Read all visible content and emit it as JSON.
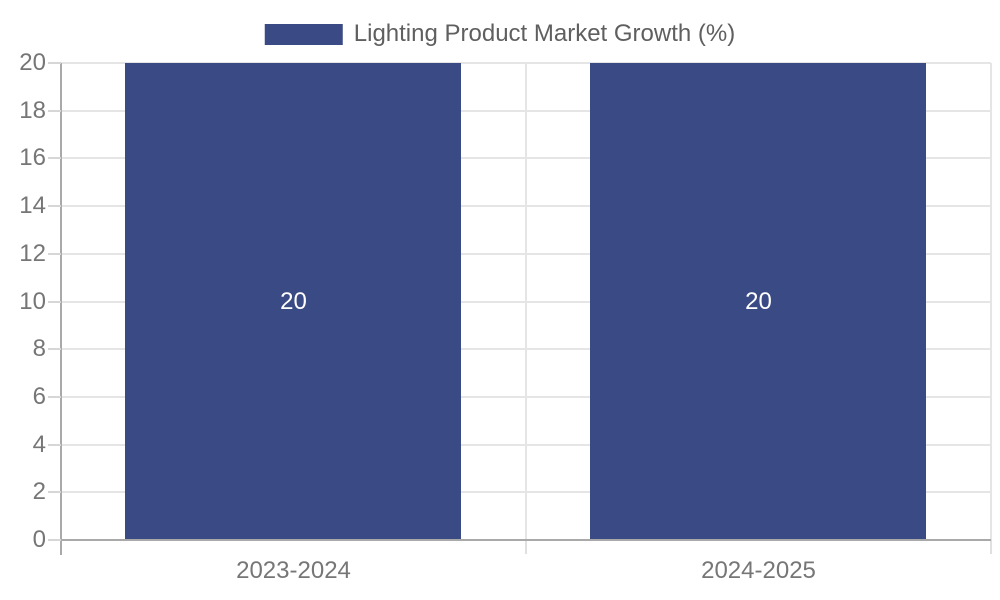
{
  "chart_data": {
    "type": "bar",
    "title": "",
    "legend_label": "Lighting Product Market Growth (%)",
    "legend_position": "top-center",
    "categories": [
      "2023-2024",
      "2024-2025"
    ],
    "values": [
      20,
      20
    ],
    "value_labels": [
      "20",
      "20"
    ],
    "xlabel": "",
    "ylabel": "",
    "ylim": [
      0,
      20
    ],
    "yticks": [
      0,
      2,
      4,
      6,
      8,
      10,
      12,
      14,
      16,
      18,
      20
    ],
    "grid": true,
    "bar_width_fraction": 0.7226,
    "colors": {
      "bar": "#3A4A84",
      "bar_label": "#FFFFFF",
      "grid_line": "#E5E5E5",
      "axis_line": "#A9A9A9",
      "tick_label": "#767676",
      "legend_text": "#5F5F5F",
      "background": "#FFFFFF"
    }
  }
}
